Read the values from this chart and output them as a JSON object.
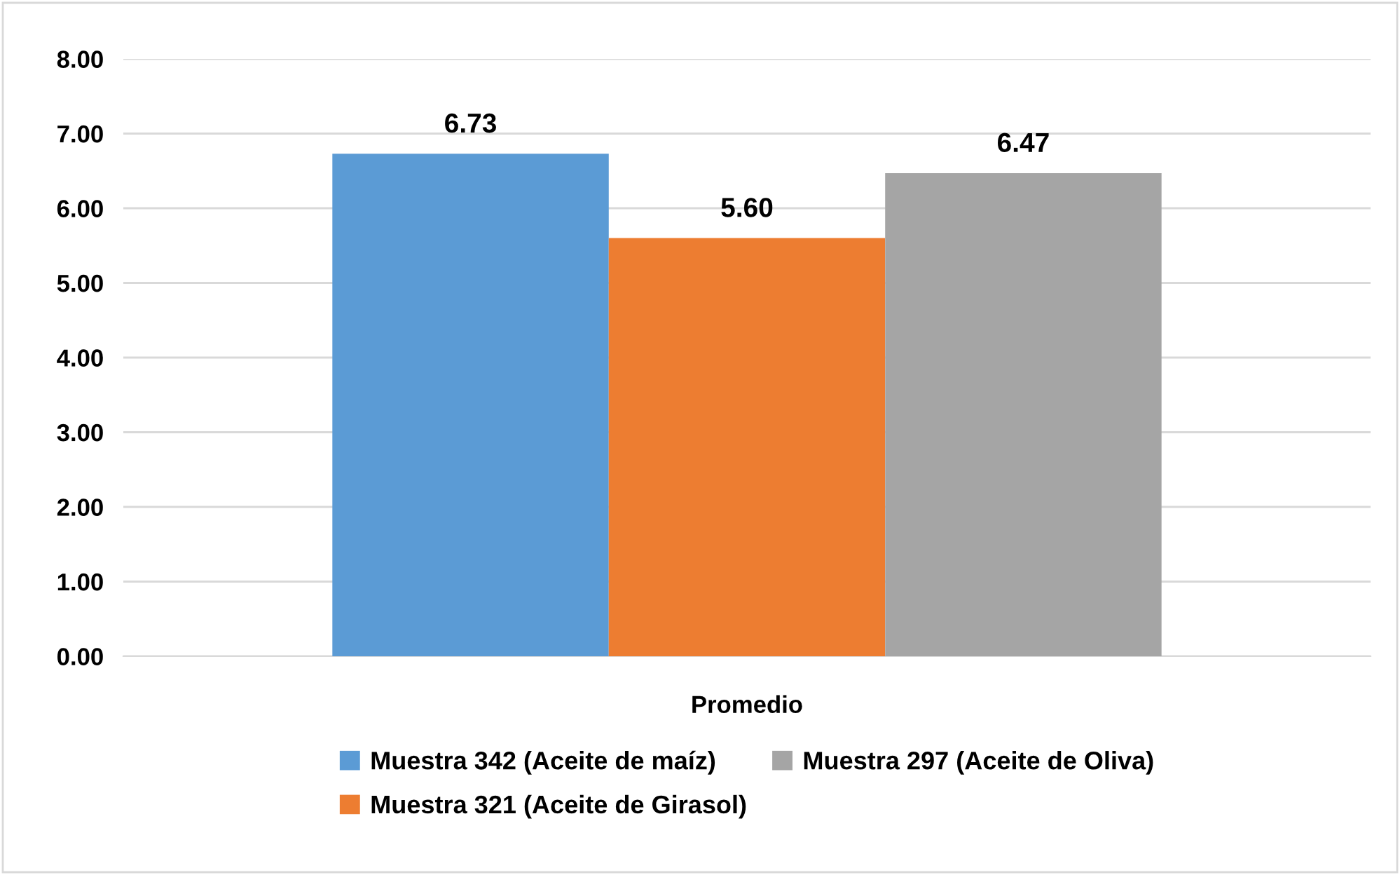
{
  "chart_data": {
    "type": "bar",
    "categories": [
      "Promedio"
    ],
    "series": [
      {
        "name": "Muestra 342 (Aceite de maíz)",
        "color": "#5b9bd5",
        "values": [
          6.73
        ],
        "value_labels": [
          "6.73"
        ]
      },
      {
        "name": "Muestra 321 (Aceite de Girasol)",
        "color": "#ed7d31",
        "values": [
          5.6
        ],
        "value_labels": [
          "5.60"
        ]
      },
      {
        "name": "Muestra 297 (Aceite de Oliva)",
        "color": "#a5a5a5",
        "values": [
          6.47
        ],
        "value_labels": [
          "6.47"
        ]
      }
    ],
    "ylim": [
      0,
      8
    ],
    "yticks": [
      {
        "value": 0,
        "label": "0.00"
      },
      {
        "value": 1,
        "label": "1.00"
      },
      {
        "value": 2,
        "label": "2.00"
      },
      {
        "value": 3,
        "label": "3.00"
      },
      {
        "value": 4,
        "label": "4.00"
      },
      {
        "value": 5,
        "label": "5.00"
      },
      {
        "value": 6,
        "label": "6.00"
      },
      {
        "value": 7,
        "label": "7.00"
      },
      {
        "value": 8,
        "label": "8.00"
      }
    ],
    "grid": "y",
    "legend": "bottom"
  }
}
